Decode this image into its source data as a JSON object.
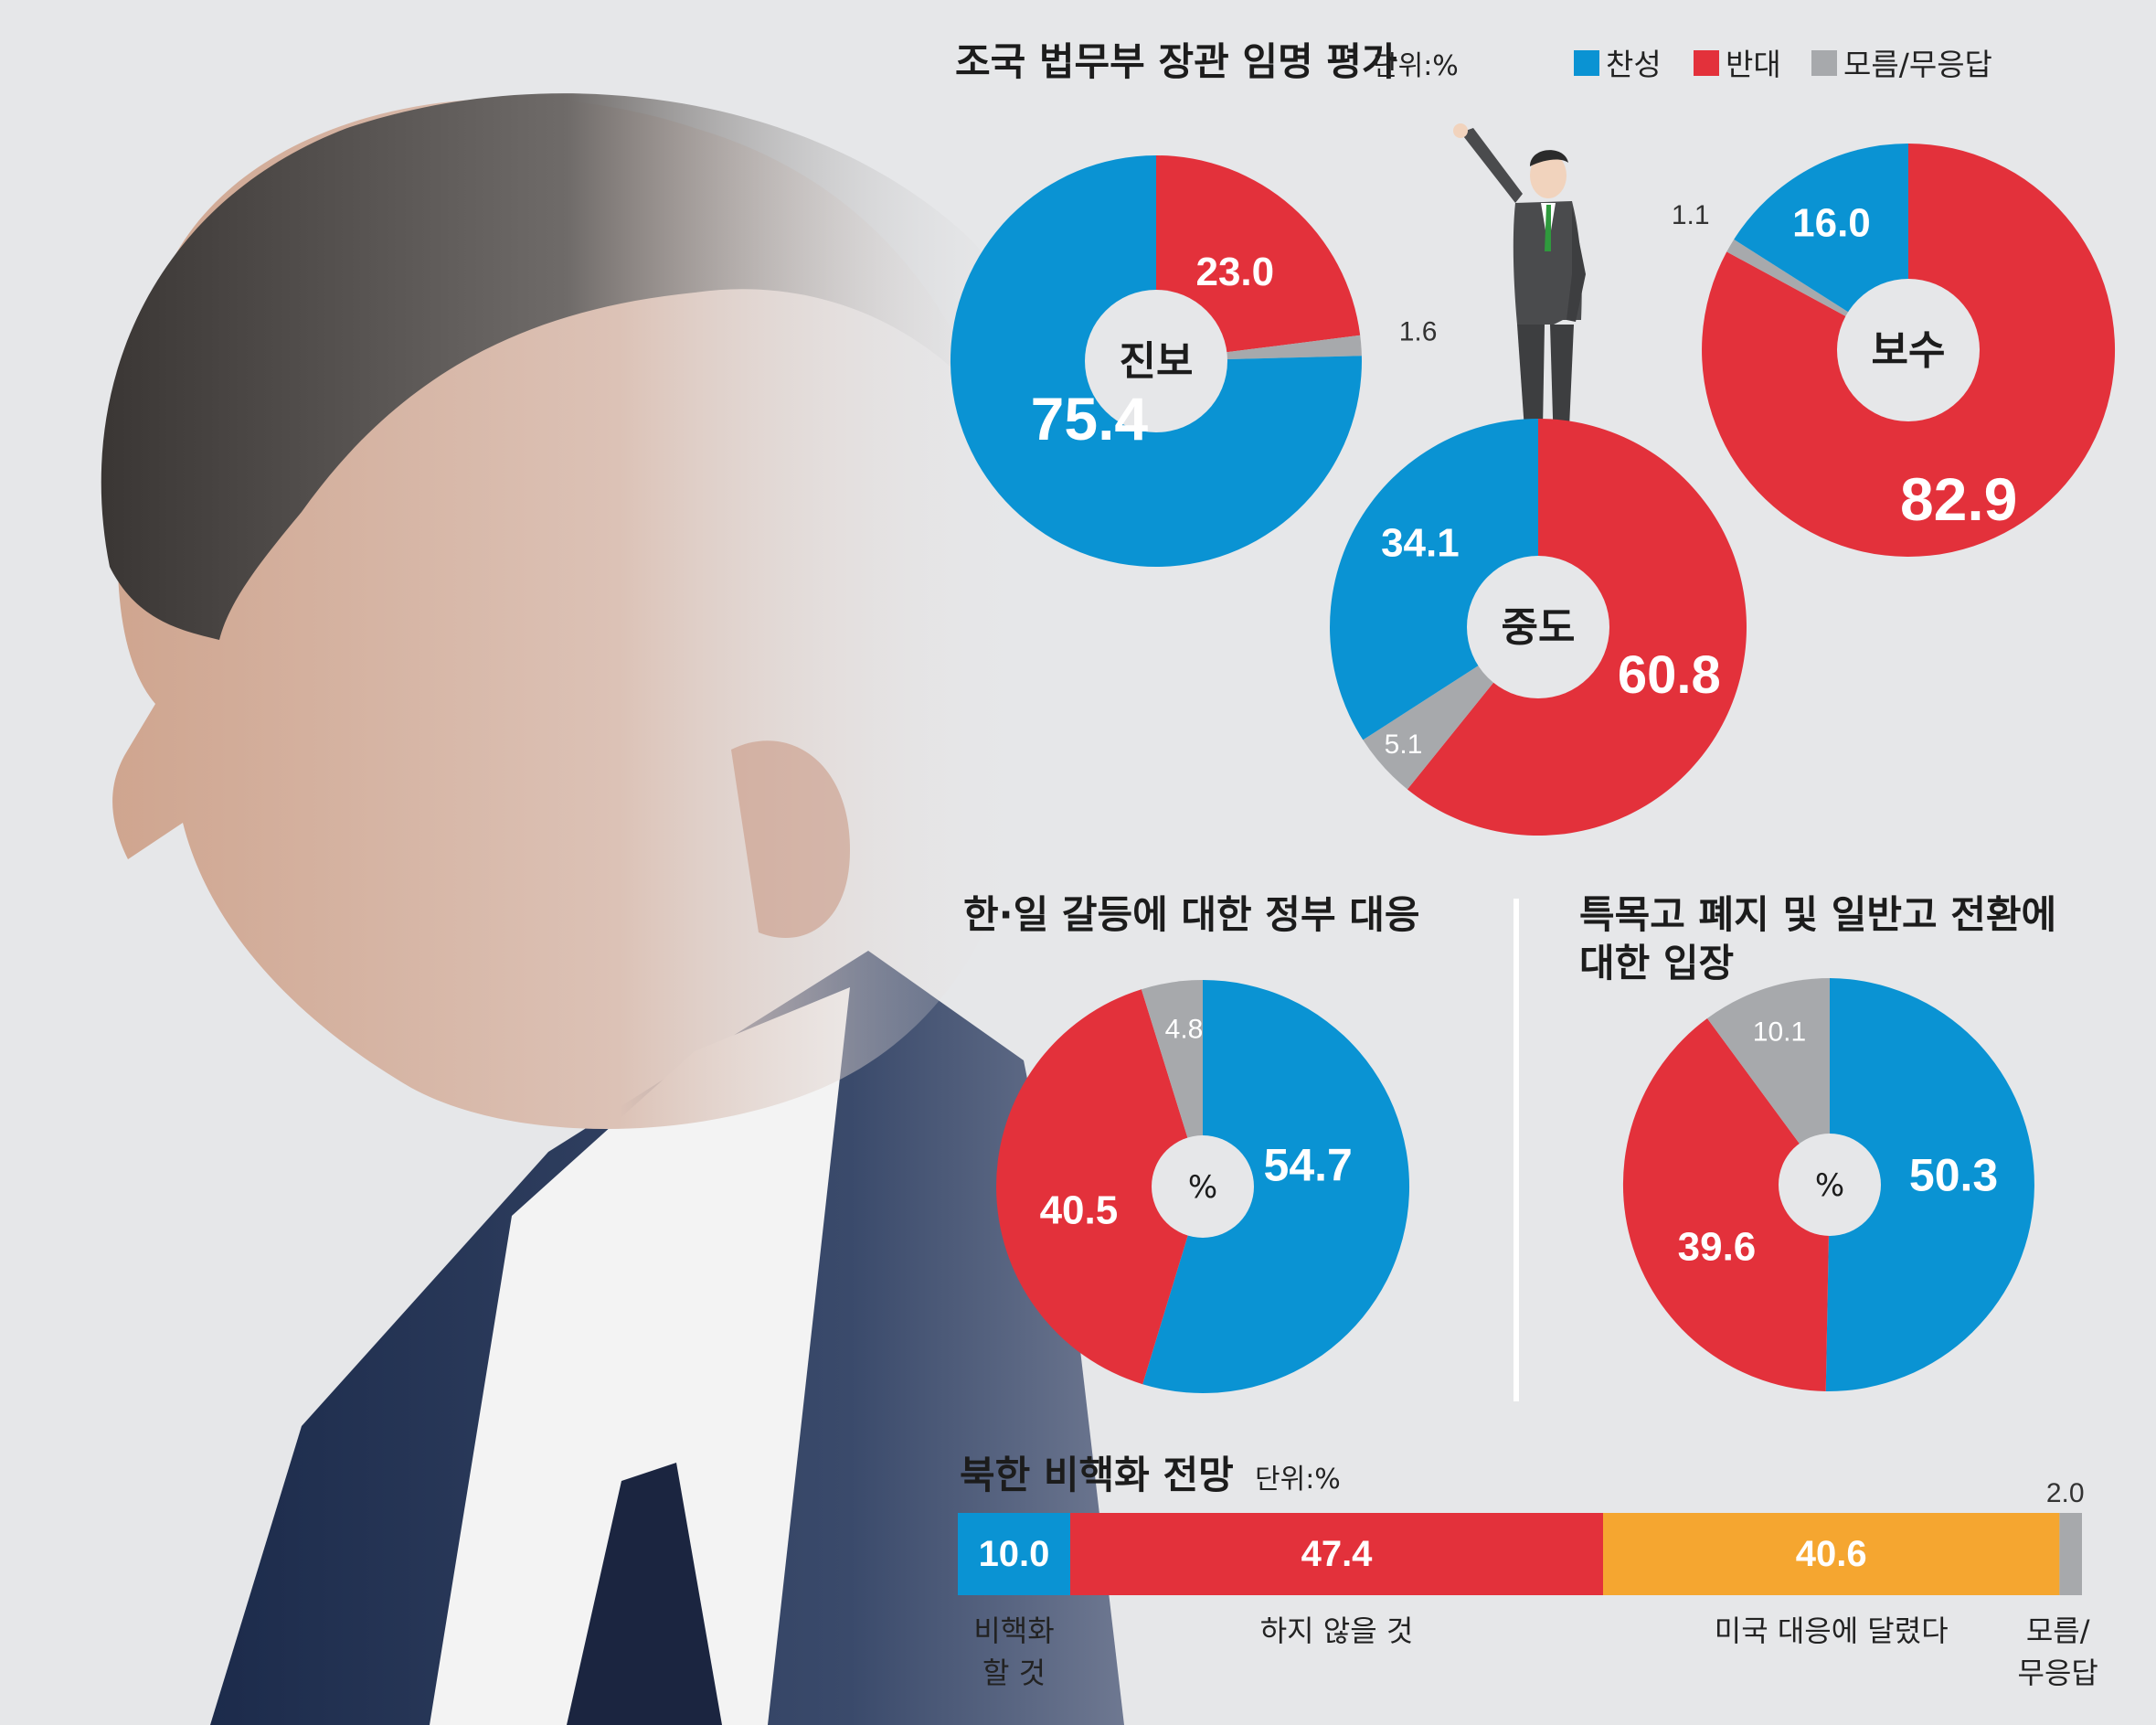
{
  "colors": {
    "support": "#0a93d3",
    "oppose": "#e3313b",
    "unknown": "#a7a9ac",
    "depends": "#f5a630"
  },
  "legend": {
    "items": [
      {
        "label": "찬성",
        "color": "#0a93d3"
      },
      {
        "label": "반대",
        "color": "#e3313b"
      },
      {
        "label": "모름/무응답",
        "color": "#a7a9ac"
      }
    ]
  },
  "chart_data": [
    {
      "type": "pie",
      "title": "조국 법무부 장관 임명 평가",
      "unit": "단위:%",
      "pies": [
        {
          "center_label": "진보",
          "slices": [
            {
              "name": "찬성",
              "value": 75.4,
              "label": "75.4"
            },
            {
              "name": "반대",
              "value": 23.0,
              "label": "23.0"
            },
            {
              "name": "모름/무응답",
              "value": 1.6,
              "label": "1.6"
            }
          ]
        },
        {
          "center_label": "중도",
          "slices": [
            {
              "name": "찬성",
              "value": 34.1,
              "label": "34.1"
            },
            {
              "name": "반대",
              "value": 60.8,
              "label": "60.8"
            },
            {
              "name": "모름/무응답",
              "value": 5.1,
              "label": "5.1"
            }
          ]
        },
        {
          "center_label": "보수",
          "slices": [
            {
              "name": "찬성",
              "value": 16.0,
              "label": "16.0"
            },
            {
              "name": "반대",
              "value": 82.9,
              "label": "82.9"
            },
            {
              "name": "모름/무응답",
              "value": 1.1,
              "label": "1.1"
            }
          ]
        }
      ]
    },
    {
      "type": "pie",
      "title": "한·일 갈등에 대한 정부 대응",
      "center_label": "%",
      "slices": [
        {
          "name": "찬성",
          "value": 54.7,
          "label": "54.7"
        },
        {
          "name": "반대",
          "value": 40.5,
          "label": "40.5"
        },
        {
          "name": "모름/무응답",
          "value": 4.8,
          "label": "4.8"
        }
      ]
    },
    {
      "type": "pie",
      "title": "특목고 폐지 및 일반고 전환에 대한 입장",
      "title_lines": [
        "특목고 폐지 및 일반고 전환에",
        "대한 입장"
      ],
      "center_label": "%",
      "slices": [
        {
          "name": "찬성",
          "value": 50.3,
          "label": "50.3"
        },
        {
          "name": "반대",
          "value": 39.6,
          "label": "39.6"
        },
        {
          "name": "모름/무응답",
          "value": 10.1,
          "label": "10.1"
        }
      ]
    },
    {
      "type": "bar",
      "title": "북한 비핵화 전망",
      "unit": "단위:%",
      "segments": [
        {
          "name": "비핵화 할 것",
          "name_lines": [
            "비핵화",
            "할 것"
          ],
          "value": 10.0,
          "label": "10.0"
        },
        {
          "name": "하지 않을 것",
          "name_lines": [
            "하지 않을 것"
          ],
          "value": 47.4,
          "label": "47.4"
        },
        {
          "name": "미국 대응에 달렸다",
          "name_lines": [
            "미국 대응에 달렸다"
          ],
          "value": 40.6,
          "label": "40.6"
        },
        {
          "name": "모름/무응답",
          "name_lines": [
            "모름/",
            "무응답"
          ],
          "value": 2.0,
          "label": "2.0"
        }
      ]
    }
  ]
}
